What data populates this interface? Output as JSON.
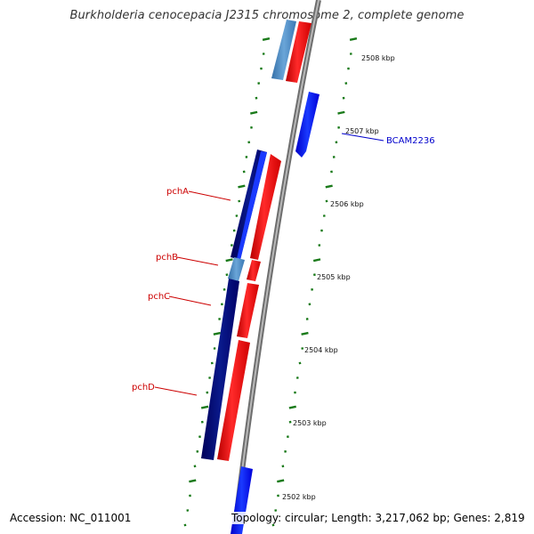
{
  "title": "Burkholderia cenocepacia J2315 chromosome 2, complete genome",
  "footer": {
    "accession": "Accession: NC_011001",
    "summary": "Topology: circular; Length: 3,217,062 bp; Genes: 2,819"
  },
  "ticks": [
    "2508 kbp",
    "2507 kbp",
    "2506 kbp",
    "2505 kbp",
    "2504 kbp",
    "2503 kbp",
    "2502 kbp"
  ],
  "gene_labels": [
    "pchA",
    "pchB",
    "pchC",
    "pchD",
    "BCAM2236"
  ],
  "colors": {
    "backbone": "#8a8a8a",
    "forward_gene": "#ff0000",
    "reverse_gene": "#0000ff",
    "reverse_operon": "#000080",
    "light_blue": "#4a8cc4",
    "tick_green": "#1a7a1a",
    "label_red": "#cc0000",
    "label_blue": "#0000cc"
  }
}
